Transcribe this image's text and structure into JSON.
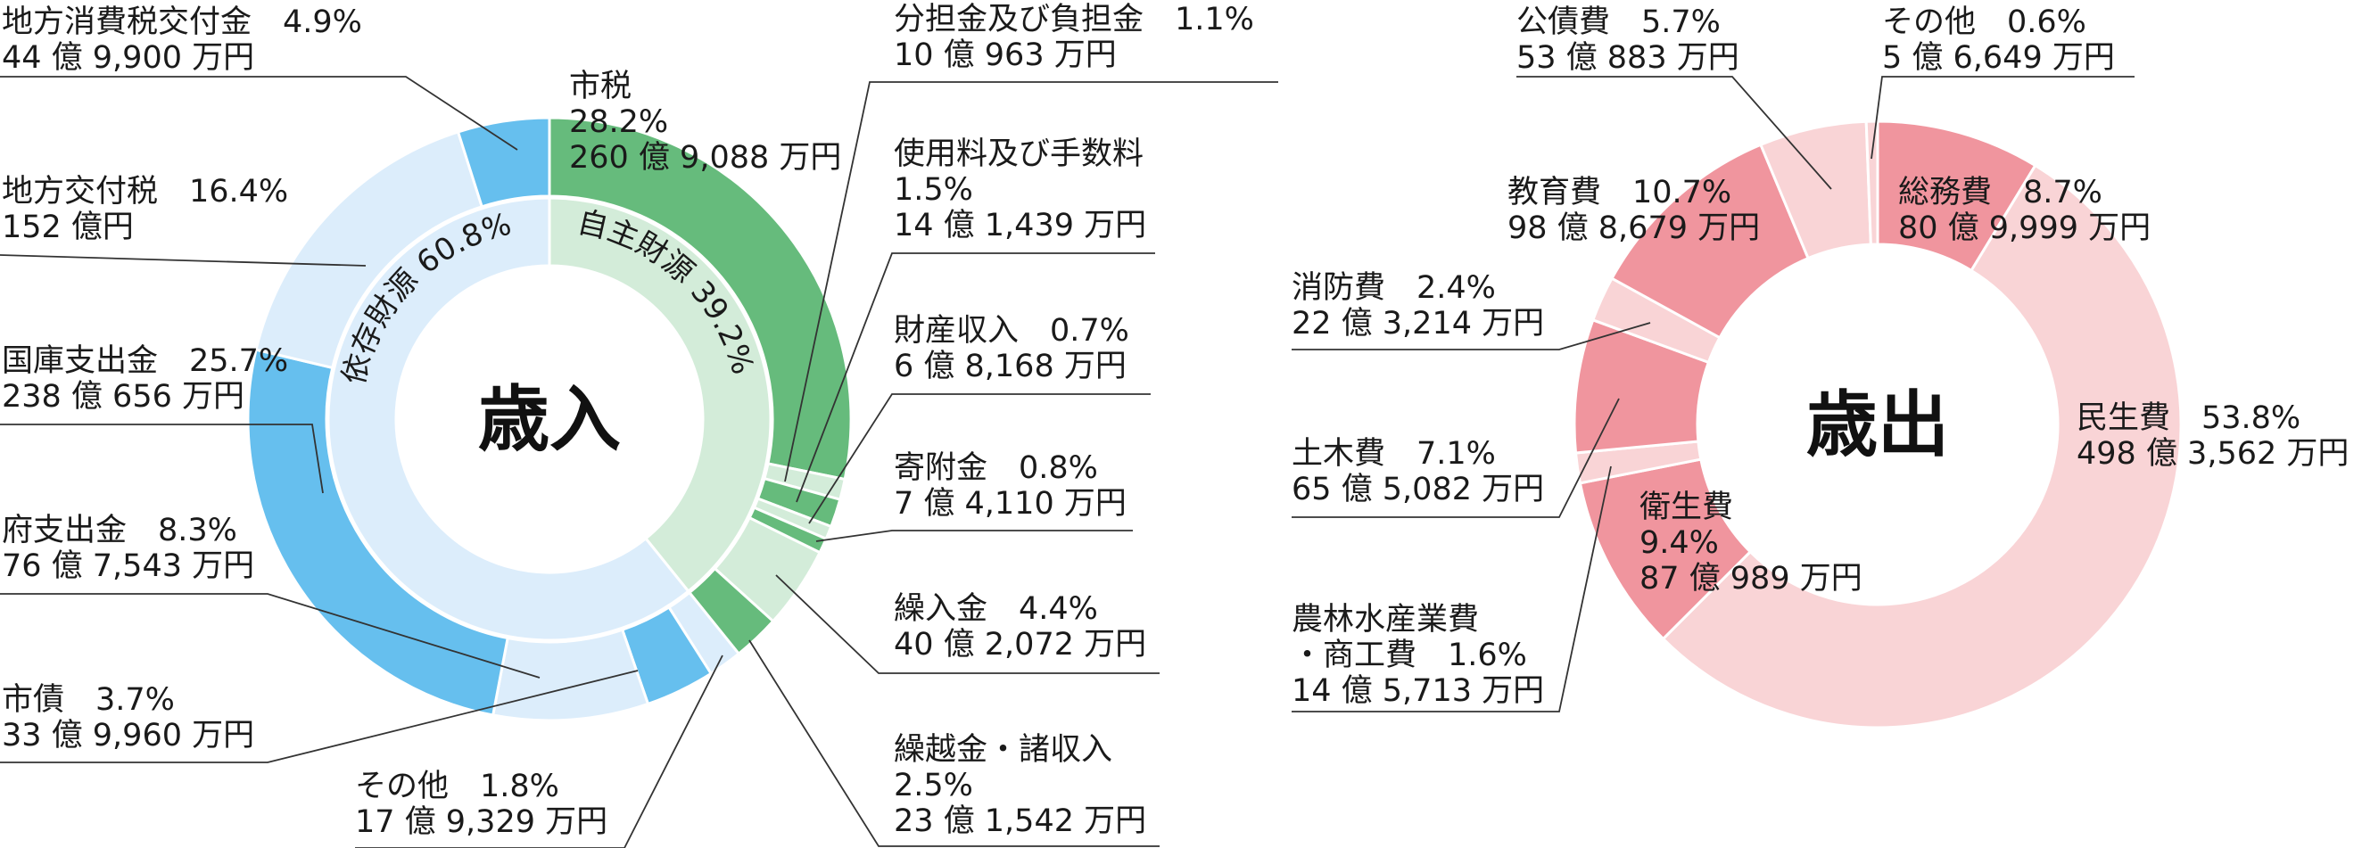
{
  "chart_data": [
    {
      "type": "pie",
      "title": "歳入",
      "slices": [
        {
          "name": "市税",
          "percent": 28.2,
          "amount": "260 億 9,088 万円",
          "group": "own",
          "label_lines": [
            "市税",
            "28.2%",
            "260 億 9,088 万円"
          ]
        },
        {
          "name": "分担金及び負担金",
          "percent": 1.1,
          "amount": "10 億 963 万円",
          "group": "own",
          "label_lines": [
            "分担金及び負担金　1.1%",
            "10 億 963 万円"
          ]
        },
        {
          "name": "使用料及び手数料",
          "percent": 1.5,
          "amount": "14 億 1,439 万円",
          "group": "own",
          "label_lines": [
            "使用料及び手数料",
            "1.5%",
            "14 億 1,439 万円"
          ]
        },
        {
          "name": "財産収入",
          "percent": 0.7,
          "amount": "6 億 8,168 万円",
          "group": "own",
          "label_lines": [
            "財産収入　0.7%",
            "6 億 8,168 万円"
          ]
        },
        {
          "name": "寄附金",
          "percent": 0.8,
          "amount": "7 億 4,110 万円",
          "group": "own",
          "label_lines": [
            "寄附金　0.8%",
            "7 億 4,110 万円"
          ]
        },
        {
          "name": "繰入金",
          "percent": 4.4,
          "amount": "40 億 2,072 万円",
          "group": "own",
          "label_lines": [
            "繰入金　4.4%",
            "40 億 2,072 万円"
          ]
        },
        {
          "name": "繰越金・諸収入",
          "percent": 2.5,
          "amount": "23 億 1,542 万円",
          "group": "own",
          "label_lines": [
            "繰越金・諸収入",
            "2.5%",
            "23 億 1,542 万円"
          ]
        },
        {
          "name": "その他",
          "percent": 1.8,
          "amount": "17 億 9,329 万円",
          "group": "dep",
          "label_lines": [
            "その他　1.8%",
            "17 億 9,329 万円"
          ]
        },
        {
          "name": "市債",
          "percent": 3.7,
          "amount": "33 億 9,960 万円",
          "group": "dep",
          "label_lines": [
            "市債　3.7%",
            "33 億 9,960 万円"
          ]
        },
        {
          "name": "府支出金",
          "percent": 8.3,
          "amount": "76 億 7,543 万円",
          "group": "dep",
          "label_lines": [
            "府支出金　8.3%",
            "76 億 7,543 万円"
          ]
        },
        {
          "name": "国庫支出金",
          "percent": 25.7,
          "amount": "238 億 656 万円",
          "group": "dep",
          "label_lines": [
            "国庫支出金　25.7%",
            "238 億 656 万円"
          ]
        },
        {
          "name": "地方交付税",
          "percent": 16.4,
          "amount": "152 億円",
          "group": "dep",
          "label_lines": [
            "地方交付税　16.4%",
            "152 億円"
          ]
        },
        {
          "name": "地方消費税交付金",
          "percent": 4.9,
          "amount": "44 億 9,900 万円",
          "group": "dep",
          "label_lines": [
            "地方消費税交付金　4.9%",
            "44 億 9,900 万円"
          ]
        }
      ],
      "groups": [
        {
          "name": "自主財源",
          "percent": 39.2,
          "label": "自主財源 39.2%"
        },
        {
          "name": "依存財源",
          "percent": 60.8,
          "label": "依存財源 60.8%"
        }
      ]
    },
    {
      "type": "pie",
      "title": "歳出",
      "slices": [
        {
          "name": "総務費",
          "percent": 8.7,
          "amount": "80 億 9,999 万円",
          "label_lines": [
            "総務費　8.7%",
            "80 億 9,999 万円"
          ]
        },
        {
          "name": "民生費",
          "percent": 53.8,
          "amount": "498 億 3,562 万円",
          "label_lines": [
            "民生費　53.8%",
            "498 億 3,562 万円"
          ]
        },
        {
          "name": "衛生費",
          "percent": 9.4,
          "amount": "87 億 989 万円",
          "label_lines": [
            "衛生費",
            "9.4%",
            "87 億 989 万円"
          ]
        },
        {
          "name": "農林水産業費・商工費",
          "percent": 1.6,
          "amount": "14 億 5,713 万円",
          "label_lines": [
            "農林水産業費",
            "・商工費　1.6%",
            "14 億 5,713 万円"
          ]
        },
        {
          "name": "土木費",
          "percent": 7.1,
          "amount": "65 億 5,082 万円",
          "label_lines": [
            "土木費　7.1%",
            "65 億 5,082 万円"
          ]
        },
        {
          "name": "消防費",
          "percent": 2.4,
          "amount": "22 億 3,214 万円",
          "label_lines": [
            "消防費　2.4%",
            "22 億 3,214 万円"
          ]
        },
        {
          "name": "教育費",
          "percent": 10.7,
          "amount": "98 億 8,679 万円",
          "label_lines": [
            "教育費　10.7%",
            "98 億 8,679 万円"
          ]
        },
        {
          "name": "公債費",
          "percent": 5.7,
          "amount": "53 億 883 万円",
          "label_lines": [
            "公債費　5.7%",
            "53 億 883 万円"
          ]
        },
        {
          "name": "その他",
          "percent": 0.6,
          "amount": "5 億 6,649 万円",
          "label_lines": [
            "その他　0.6%",
            "5 億 6,649 万円"
          ]
        }
      ]
    }
  ],
  "colors": {
    "own_dark": "#66bb7c",
    "own_light": "#d3ecd9",
    "dep_dark": "#66bfee",
    "dep_light": "#dcedfb",
    "exp_dark": "#f0959e",
    "exp_light": "#f9d4d6",
    "leader": "#333333"
  }
}
